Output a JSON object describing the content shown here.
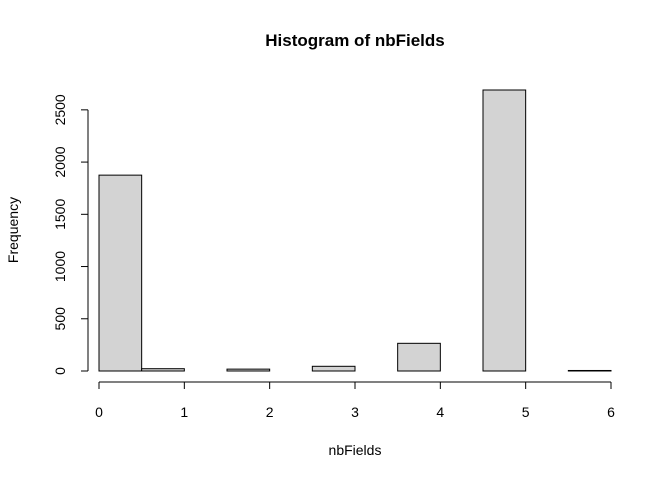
{
  "chart_data": {
    "type": "bar",
    "title": "Histogram of nbFields",
    "xlabel": "nbFields",
    "ylabel": "Frequency",
    "bins": [
      {
        "start": 0.0,
        "end": 0.5,
        "value": 1875
      },
      {
        "start": 0.5,
        "end": 1.0,
        "value": 22
      },
      {
        "start": 1.0,
        "end": 1.5,
        "value": 0
      },
      {
        "start": 1.5,
        "end": 2.0,
        "value": 18
      },
      {
        "start": 2.0,
        "end": 2.5,
        "value": 0
      },
      {
        "start": 2.5,
        "end": 3.0,
        "value": 45
      },
      {
        "start": 3.0,
        "end": 3.5,
        "value": 0
      },
      {
        "start": 3.5,
        "end": 4.0,
        "value": 265
      },
      {
        "start": 4.0,
        "end": 4.5,
        "value": 0
      },
      {
        "start": 4.5,
        "end": 5.0,
        "value": 2690
      },
      {
        "start": 5.0,
        "end": 5.5,
        "value": 0
      },
      {
        "start": 5.5,
        "end": 6.0,
        "value": 5
      }
    ],
    "xlim": [
      0,
      6
    ],
    "ylim": [
      0,
      2690
    ],
    "x_ticks": [
      0,
      1,
      2,
      3,
      4,
      5,
      6
    ],
    "y_ticks": [
      0,
      500,
      1000,
      1500,
      2000,
      2500
    ],
    "bar_color": "#d3d3d3",
    "grid": false,
    "legend": "none"
  }
}
